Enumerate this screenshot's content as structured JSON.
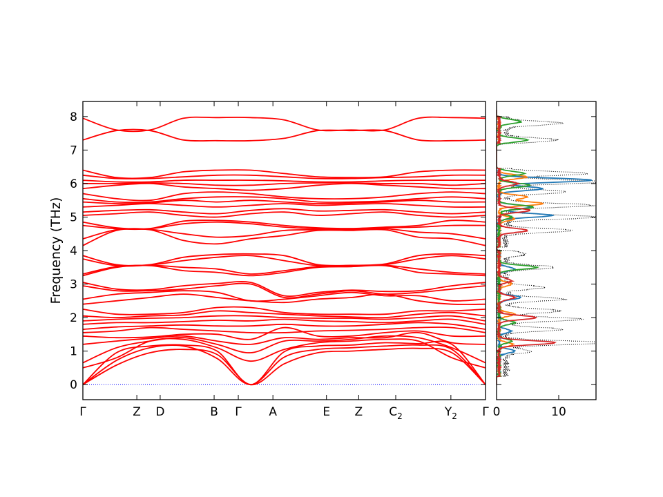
{
  "chart_data": [
    {
      "type": "line",
      "panel": "phonon-band-structure",
      "ylabel": "Frequency (THz)",
      "ylim": [
        -0.45,
        8.45
      ],
      "yticks": [
        0,
        1,
        2,
        3,
        4,
        5,
        6,
        7,
        8
      ],
      "line_color": "#ff0000",
      "zero_line_color": "#0000ff",
      "kpath_ticks": [
        {
          "pos": 0.0,
          "label": "Γ",
          "sub": ""
        },
        {
          "pos": 1.34,
          "label": "Z",
          "sub": ""
        },
        {
          "pos": 1.92,
          "label": "D",
          "sub": ""
        },
        {
          "pos": 3.26,
          "label": "B",
          "sub": ""
        },
        {
          "pos": 3.86,
          "label": "Γ",
          "sub": ""
        },
        {
          "pos": 4.72,
          "label": "A",
          "sub": ""
        },
        {
          "pos": 6.05,
          "label": "E",
          "sub": ""
        },
        {
          "pos": 6.85,
          "label": "Z",
          "sub": ""
        },
        {
          "pos": 7.77,
          "label": "C",
          "sub": "2"
        },
        {
          "pos": 9.14,
          "label": "Y",
          "sub": "2"
        },
        {
          "pos": 10.0,
          "label": "Γ",
          "sub": ""
        }
      ],
      "bands": [
        [
          0.0,
          0.58,
          0.95,
          1.05,
          0.9,
          0.0,
          0.62,
          0.95,
          1.0,
          1.05,
          1.08,
          0.95,
          0.0
        ],
        [
          0.0,
          0.72,
          1.1,
          1.15,
          0.78,
          0.0,
          0.82,
          1.05,
          1.1,
          1.15,
          1.18,
          1.05,
          0.0
        ],
        [
          0.0,
          0.95,
          1.15,
          1.18,
          1.0,
          0.0,
          0.98,
          1.15,
          1.18,
          1.25,
          1.22,
          1.2,
          0.0
        ],
        [
          0.5,
          0.8,
          1.3,
          1.35,
          1.1,
          0.7,
          1.05,
          1.25,
          1.3,
          1.35,
          1.3,
          0.8,
          0.5
        ],
        [
          0.65,
          1.1,
          1.3,
          1.4,
          1.2,
          0.95,
          1.3,
          1.3,
          1.35,
          1.45,
          1.4,
          1.1,
          0.65
        ],
        [
          1.2,
          1.3,
          1.38,
          1.45,
          1.3,
          1.2,
          1.4,
          1.35,
          1.4,
          1.4,
          1.55,
          1.25,
          1.2
        ],
        [
          1.45,
          1.4,
          1.42,
          1.5,
          1.5,
          1.35,
          1.7,
          1.45,
          1.45,
          1.55,
          1.6,
          1.45,
          1.45
        ],
        [
          1.55,
          1.6,
          1.7,
          1.65,
          1.6,
          1.55,
          1.55,
          1.6,
          1.62,
          1.65,
          1.7,
          1.7,
          1.55
        ],
        [
          1.65,
          1.72,
          1.75,
          1.78,
          1.75,
          1.75,
          1.8,
          1.75,
          1.75,
          1.8,
          1.85,
          1.8,
          1.65
        ],
        [
          1.8,
          1.85,
          1.85,
          1.88,
          1.92,
          1.9,
          1.95,
          1.9,
          1.88,
          1.85,
          1.9,
          1.95,
          1.8
        ],
        [
          1.9,
          1.95,
          1.98,
          2.0,
          2.05,
          2.05,
          2.0,
          1.98,
          1.98,
          1.95,
          2.0,
          2.05,
          1.9
        ],
        [
          2.05,
          2.0,
          2.05,
          2.08,
          2.2,
          2.15,
          2.1,
          2.05,
          2.02,
          2.0,
          2.1,
          2.15,
          2.05
        ],
        [
          2.25,
          2.1,
          2.1,
          2.15,
          2.3,
          2.3,
          2.15,
          2.1,
          2.1,
          2.1,
          2.2,
          2.2,
          2.25
        ],
        [
          2.4,
          2.5,
          2.6,
          2.7,
          2.6,
          2.5,
          2.45,
          2.55,
          2.6,
          2.7,
          2.5,
          2.4,
          2.4
        ],
        [
          2.55,
          2.7,
          2.75,
          2.8,
          2.75,
          2.5,
          2.55,
          2.65,
          2.75,
          2.65,
          2.65,
          2.5,
          2.55
        ],
        [
          2.95,
          2.8,
          2.8,
          2.85,
          2.95,
          3.0,
          2.6,
          2.7,
          2.8,
          2.7,
          2.75,
          2.85,
          2.95
        ],
        [
          3.05,
          2.85,
          2.83,
          2.95,
          3.02,
          3.05,
          2.65,
          2.75,
          2.82,
          2.78,
          2.8,
          2.95,
          3.05
        ],
        [
          3.25,
          3.5,
          3.55,
          3.4,
          3.35,
          3.25,
          3.35,
          3.5,
          3.52,
          3.55,
          3.35,
          3.3,
          3.25
        ],
        [
          3.3,
          3.52,
          3.56,
          3.5,
          3.45,
          3.3,
          3.4,
          3.52,
          3.53,
          3.56,
          3.45,
          3.35,
          3.3
        ],
        [
          3.75,
          3.55,
          3.57,
          3.7,
          3.8,
          3.85,
          3.7,
          3.55,
          3.55,
          3.58,
          3.75,
          3.85,
          3.75
        ],
        [
          3.85,
          3.58,
          3.58,
          3.8,
          3.88,
          3.9,
          3.85,
          3.58,
          3.56,
          3.6,
          3.85,
          3.9,
          3.85
        ],
        [
          4.15,
          4.6,
          4.62,
          4.3,
          4.2,
          4.35,
          4.45,
          4.6,
          4.6,
          4.62,
          4.4,
          4.35,
          4.15
        ],
        [
          4.35,
          4.62,
          4.63,
          4.5,
          4.4,
          4.45,
          4.6,
          4.62,
          4.62,
          4.65,
          4.55,
          4.5,
          4.35
        ],
        [
          4.75,
          4.65,
          4.65,
          4.8,
          4.85,
          4.8,
          4.7,
          4.65,
          4.65,
          4.68,
          4.7,
          4.75,
          4.75
        ],
        [
          4.85,
          4.68,
          4.66,
          4.88,
          4.9,
          4.85,
          4.75,
          4.68,
          4.66,
          4.7,
          4.75,
          4.9,
          4.85
        ],
        [
          5.05,
          5.1,
          5.15,
          5.05,
          5.0,
          5.1,
          5.15,
          5.05,
          5.1,
          5.15,
          5.05,
          5.0,
          5.05
        ],
        [
          5.15,
          5.2,
          5.22,
          5.15,
          5.1,
          5.2,
          5.25,
          5.18,
          5.2,
          5.22,
          5.15,
          5.1,
          5.15
        ],
        [
          5.3,
          5.35,
          5.4,
          5.35,
          5.3,
          5.35,
          5.4,
          5.35,
          5.38,
          5.4,
          5.35,
          5.3,
          5.3
        ],
        [
          5.45,
          5.4,
          5.42,
          5.5,
          5.45,
          5.5,
          5.45,
          5.4,
          5.42,
          5.45,
          5.5,
          5.45,
          5.45
        ],
        [
          5.55,
          5.45,
          5.45,
          5.55,
          5.6,
          5.6,
          5.55,
          5.45,
          5.45,
          5.48,
          5.55,
          5.6,
          5.55
        ],
        [
          5.7,
          5.55,
          5.5,
          5.7,
          5.75,
          5.7,
          5.6,
          5.55,
          5.55,
          5.6,
          5.7,
          5.75,
          5.7
        ],
        [
          5.85,
          5.95,
          6.0,
          5.9,
          5.85,
          5.8,
          5.85,
          5.95,
          6.0,
          5.95,
          5.9,
          5.85,
          5.85
        ],
        [
          6.0,
          6.0,
          6.02,
          6.0,
          5.95,
          5.95,
          6.0,
          6.02,
          6.02,
          6.0,
          6.0,
          5.95,
          6.0
        ],
        [
          6.1,
          6.05,
          6.05,
          6.1,
          6.1,
          6.1,
          6.08,
          6.05,
          6.05,
          6.08,
          6.1,
          6.1,
          6.1
        ],
        [
          6.25,
          6.15,
          6.15,
          6.2,
          6.25,
          6.25,
          6.2,
          6.15,
          6.15,
          6.18,
          6.2,
          6.25,
          6.25
        ],
        [
          6.4,
          6.18,
          6.18,
          6.35,
          6.4,
          6.4,
          6.3,
          6.2,
          6.18,
          6.2,
          6.35,
          6.4,
          6.4
        ],
        [
          7.3,
          7.58,
          7.58,
          7.3,
          7.28,
          7.28,
          7.35,
          7.58,
          7.58,
          7.58,
          7.3,
          7.28,
          7.3
        ],
        [
          7.95,
          7.6,
          7.6,
          7.95,
          7.97,
          7.97,
          7.9,
          7.6,
          7.6,
          7.6,
          7.95,
          7.97,
          7.95
        ]
      ]
    },
    {
      "type": "line",
      "panel": "projected-dos",
      "xlim": [
        0,
        16
      ],
      "xticks": [
        0,
        10
      ],
      "ylim": [
        -0.45,
        8.45
      ],
      "series": [
        {
          "color": "#000000",
          "style": "dotted",
          "peaks": [
            [
              0.3,
              0.0
            ],
            [
              1.0,
              4.0
            ],
            [
              1.25,
              15.5
            ],
            [
              1.65,
              9.0
            ],
            [
              1.95,
              12.0
            ],
            [
              2.2,
              9.0
            ],
            [
              2.55,
              9.5
            ],
            [
              2.9,
              6.0
            ],
            [
              3.5,
              8.0
            ],
            [
              3.9,
              3.5
            ],
            [
              4.6,
              10.5
            ],
            [
              5.0,
              15.0
            ],
            [
              5.35,
              14.0
            ],
            [
              5.75,
              10.0
            ],
            [
              6.05,
              15.5
            ],
            [
              6.3,
              13.0
            ],
            [
              7.3,
              8.5
            ],
            [
              7.8,
              9.0
            ]
          ]
        },
        {
          "color": "#1f77b4",
          "style": "solid",
          "peaks": [
            [
              1.0,
              2.5
            ],
            [
              1.6,
              2.0
            ],
            [
              2.6,
              3.5
            ],
            [
              3.45,
              2.5
            ],
            [
              5.05,
              8.5
            ],
            [
              5.3,
              5.0
            ],
            [
              5.85,
              7.0
            ],
            [
              6.1,
              15.0
            ]
          ]
        },
        {
          "color": "#ff7f0e",
          "style": "solid",
          "peaks": [
            [
              1.2,
              2.2
            ],
            [
              2.1,
              2.5
            ],
            [
              3.0,
              2.0
            ],
            [
              4.95,
              2.5
            ],
            [
              5.4,
              7.0
            ],
            [
              5.6,
              4.5
            ],
            [
              6.2,
              4.5
            ]
          ]
        },
        {
          "color": "#2ca02c",
          "style": "solid",
          "peaks": [
            [
              1.3,
              2.0
            ],
            [
              1.85,
              2.5
            ],
            [
              3.5,
              6.0
            ],
            [
              5.0,
              2.0
            ],
            [
              5.3,
              5.5
            ],
            [
              5.95,
              5.0
            ],
            [
              6.3,
              4.0
            ],
            [
              7.3,
              4.5
            ],
            [
              7.85,
              3.5
            ]
          ]
        },
        {
          "color": "#d62728",
          "style": "solid",
          "peaks": [
            [
              1.25,
              9.0
            ],
            [
              2.0,
              6.0
            ],
            [
              2.6,
              2.5
            ],
            [
              3.1,
              2.0
            ],
            [
              4.6,
              4.5
            ],
            [
              5.2,
              5.0
            ],
            [
              6.0,
              3.0
            ]
          ]
        }
      ]
    }
  ]
}
